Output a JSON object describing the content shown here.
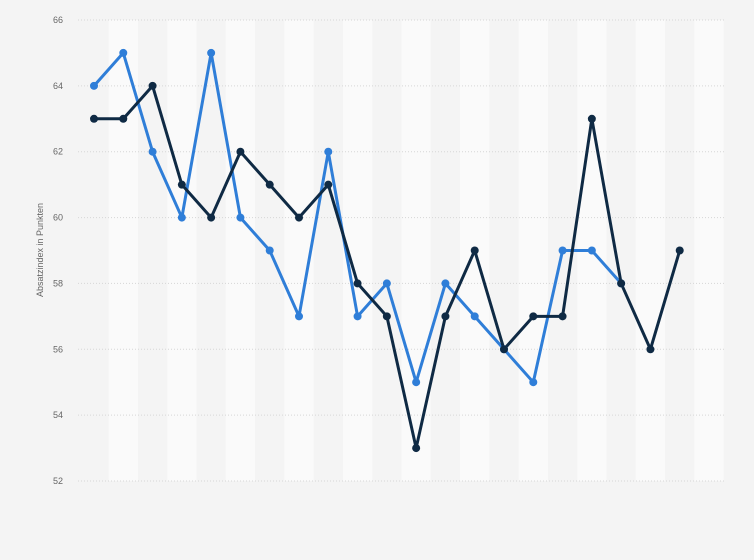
{
  "chart_data": {
    "type": "line",
    "title": "",
    "xlabel": "",
    "ylabel": "Absatzindex in Punkten",
    "ylim": [
      52,
      66
    ],
    "yticks": [
      52,
      54,
      56,
      58,
      60,
      62,
      64,
      66
    ],
    "grid": true,
    "legend": "none",
    "x": [
      1,
      2,
      3,
      4,
      5,
      6,
      7,
      8,
      9,
      10,
      11,
      12,
      13,
      14,
      15,
      16,
      17,
      18,
      19,
      20,
      21,
      22
    ],
    "series": [
      {
        "color": "#2f7ed8",
        "values": [
          64,
          65,
          62,
          60,
          65,
          60,
          59,
          57,
          62,
          57,
          58,
          55,
          58,
          57,
          56,
          55,
          59,
          59,
          58,
          null,
          null,
          null
        ]
      },
      {
        "color": "#0f2a44",
        "values": [
          63,
          63,
          64,
          61,
          60,
          62,
          61,
          60,
          61,
          58,
          57,
          53,
          57,
          59,
          56,
          57,
          57,
          63,
          58,
          56,
          59,
          null
        ]
      }
    ]
  }
}
